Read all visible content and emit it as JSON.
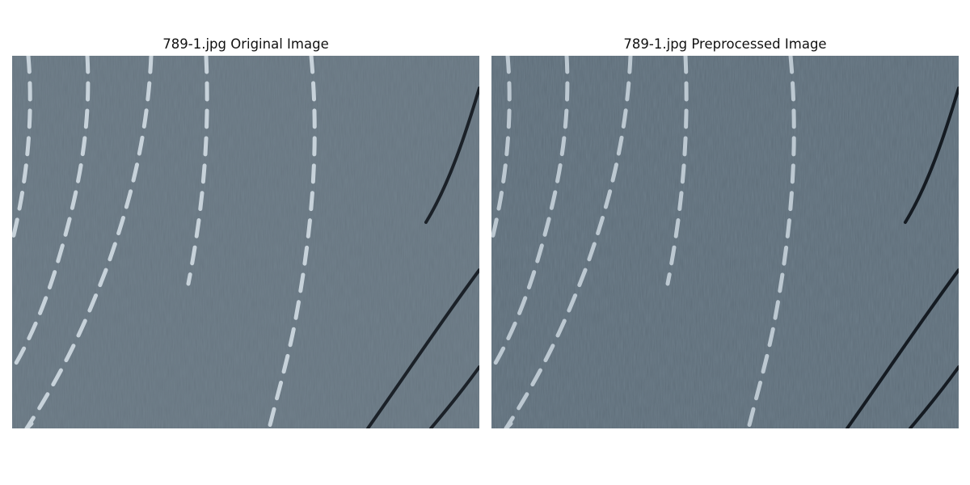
{
  "figure": {
    "panels": [
      {
        "title": "789-1.jpg Original Image",
        "image": {
          "subject": "grey-blue woven fabric with white dashed chalk lines and black curved lines",
          "background_color": "#6f7e89",
          "dash_color": "#c7d2da",
          "line_color": "#1b2128"
        }
      },
      {
        "title": "789-1.jpg Preprocessed Image",
        "image": {
          "subject": "grey-blue woven fabric with white dashed chalk lines and black curved lines",
          "background_color": "#6a7a86",
          "dash_color": "#bcc8d1",
          "line_color": "#151b22"
        }
      }
    ]
  }
}
